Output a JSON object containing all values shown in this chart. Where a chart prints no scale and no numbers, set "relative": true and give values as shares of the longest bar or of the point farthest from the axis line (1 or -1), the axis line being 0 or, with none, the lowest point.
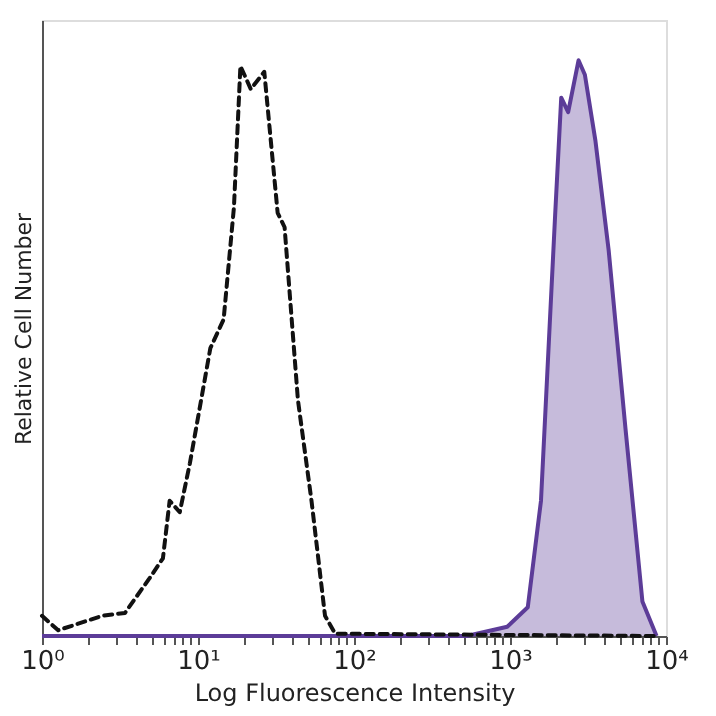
{
  "chart_data": {
    "type": "line",
    "xlabel": "Log Fluorescence Intensity",
    "ylabel": "Relative Cell Number",
    "relative": true,
    "log": "x",
    "grid": false,
    "legend": false,
    "xlim": [
      1,
      10000
    ],
    "xticks": [
      {
        "value": 1,
        "label": "10⁰"
      },
      {
        "value": 2,
        "label": null
      },
      {
        "value": 3,
        "label": null
      },
      {
        "value": 4,
        "label": null
      },
      {
        "value": 5,
        "label": null
      },
      {
        "value": 6,
        "label": null
      },
      {
        "value": 7,
        "label": null
      },
      {
        "value": 8,
        "label": null
      },
      {
        "value": 9,
        "label": null
      },
      {
        "value": 10,
        "label": "10¹"
      },
      {
        "value": 20,
        "label": null
      },
      {
        "value": 30,
        "label": null
      },
      {
        "value": 40,
        "label": null
      },
      {
        "value": 50,
        "label": null
      },
      {
        "value": 60,
        "label": null
      },
      {
        "value": 70,
        "label": null
      },
      {
        "value": 80,
        "label": null
      },
      {
        "value": 90,
        "label": null
      },
      {
        "value": 100,
        "label": "10²"
      },
      {
        "value": 200,
        "label": null
      },
      {
        "value": 300,
        "label": null
      },
      {
        "value": 400,
        "label": null
      },
      {
        "value": 500,
        "label": null
      },
      {
        "value": 600,
        "label": null
      },
      {
        "value": 700,
        "label": null
      },
      {
        "value": 800,
        "label": null
      },
      {
        "value": 900,
        "label": null
      },
      {
        "value": 1000,
        "label": "10³"
      },
      {
        "value": 2000,
        "label": null
      },
      {
        "value": 3000,
        "label": null
      },
      {
        "value": 4000,
        "label": null
      },
      {
        "value": 5000,
        "label": null
      },
      {
        "value": 6000,
        "label": null
      },
      {
        "value": 7000,
        "label": null
      },
      {
        "value": 8000,
        "label": null
      },
      {
        "value": 9000,
        "label": null
      },
      {
        "value": 10000,
        "label": "10⁴"
      }
    ],
    "series": [
      {
        "type": "area",
        "color": "#5c3c98",
        "x": [
          1,
          528,
          960,
          1300,
          1580,
          1950,
          2130,
          2360,
          2750,
          3020,
          3530,
          4290,
          5500,
          7060,
          8700
        ],
        "values": [
          0,
          0,
          0.016,
          0.05,
          0.235,
          0.735,
          0.935,
          0.91,
          1.0,
          0.975,
          0.86,
          0.67,
          0.36,
          0.06,
          0
        ]
      },
      {
        "line_style": "dashed",
        "color": "#111111",
        "x": [
          1,
          1.27,
          2.43,
          3.4,
          4.88,
          5.96,
          6.58,
          7.64,
          8.87,
          12.0,
          14.6,
          17.0,
          18.7,
          21.8,
          26.6,
          32.4,
          35.9,
          43.7,
          53.4,
          65.2,
          75.8,
          8700
        ],
        "values": [
          0.035,
          0.01,
          0.035,
          0.04,
          0.1,
          0.135,
          0.235,
          0.215,
          0.3,
          0.5,
          0.55,
          0.745,
          0.99,
          0.95,
          0.98,
          0.735,
          0.71,
          0.41,
          0.235,
          0.035,
          0.004,
          0
        ]
      }
    ]
  }
}
